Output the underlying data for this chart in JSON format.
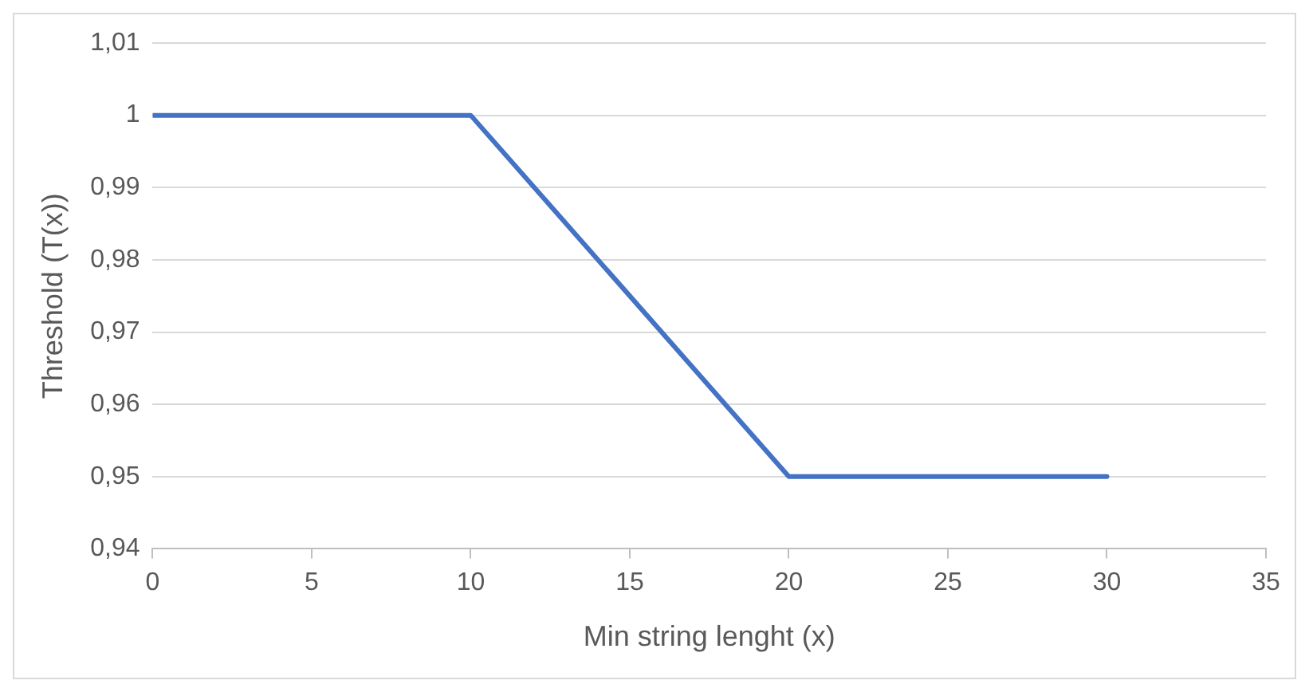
{
  "chart_data": {
    "type": "line",
    "xlabel": "Min string lenght (x)",
    "ylabel": "Threshold (T(x))",
    "x": [
      0,
      10,
      20,
      30
    ],
    "series": [
      {
        "color": "#4472c4",
        "values": [
          1,
          1,
          0.95,
          0.95
        ]
      }
    ],
    "xlim": [
      0,
      35
    ],
    "xticks": [
      0,
      5,
      10,
      15,
      20,
      25,
      30,
      35
    ],
    "ylim": [
      0.94,
      1.01
    ],
    "yticks": [
      {
        "value": 0.94,
        "label": "0,94"
      },
      {
        "value": 0.95,
        "label": "0,95"
      },
      {
        "value": 0.96,
        "label": "0,96"
      },
      {
        "value": 0.97,
        "label": "0,97"
      },
      {
        "value": 0.98,
        "label": "0,98"
      },
      {
        "value": 0.99,
        "label": "0,99"
      },
      1,
      {
        "value": 1.01,
        "label": "1,01"
      }
    ],
    "grid": "y",
    "legend": false,
    "marker": "none",
    "line_style": "solid"
  }
}
